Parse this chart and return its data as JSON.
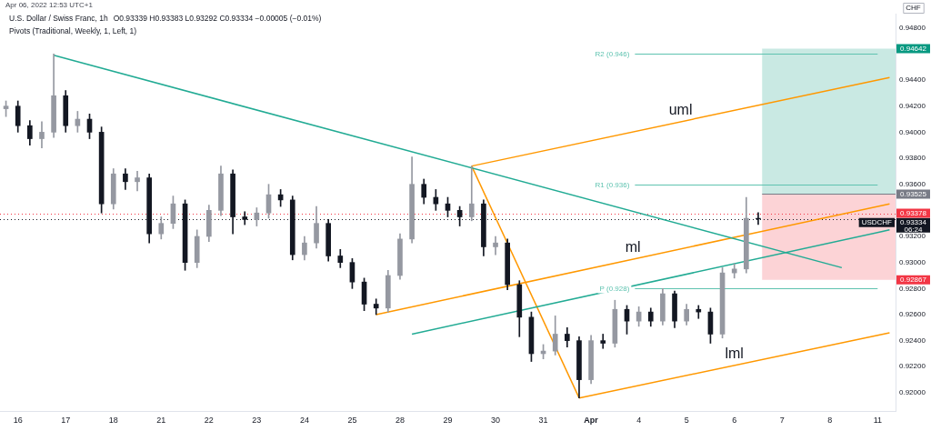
{
  "chart_data": {
    "type": "candlestick",
    "title": "U.S. Dollar / Swiss Franc, 1h",
    "subtitle": "O0.93339 H0.93383 L0.93292 C0.93334 −0.00005 (−0.01%)",
    "ylabel": "CHF",
    "annotations": [
      "Apr 06, 2022 12:53 UTC+1",
      "Pivots (Traditional, Weekly, 1, Left, 1)",
      "USDCHF",
      "06:24"
    ],
    "categories": [
      null,
      "16",
      null,
      null,
      null,
      "17",
      null,
      null,
      null,
      "18",
      null,
      null,
      null,
      "21",
      null,
      null,
      null,
      "22",
      null,
      null,
      null,
      "23",
      null,
      null,
      null,
      "24",
      null,
      null,
      null,
      "25",
      null,
      null,
      null,
      "28",
      null,
      null,
      null,
      "29",
      null,
      null,
      null,
      "30",
      null,
      null,
      null,
      "31",
      null,
      null,
      null,
      "Apr",
      null,
      null,
      null,
      "4",
      null,
      null,
      null,
      "5",
      null,
      null,
      null,
      "6",
      null,
      null,
      null,
      "7",
      null,
      null,
      null,
      "8",
      null,
      null,
      null,
      "11",
      null
    ],
    "ylim": [
      0.9186,
      0.9491
    ],
    "yticks": [
      {
        "value": 0.92,
        "label": "0.92000"
      },
      {
        "value": 0.922,
        "label": "0.92200"
      },
      {
        "value": 0.924,
        "label": "0.92400"
      },
      {
        "value": 0.926,
        "label": "0.92600"
      },
      {
        "value": 0.928,
        "label": "0.92800"
      },
      {
        "value": 0.93,
        "label": "0.93000"
      },
      {
        "value": 0.932,
        "label": "0.93200"
      },
      {
        "value": 0.936,
        "label": "0.93600"
      },
      {
        "value": 0.938,
        "label": "0.93800"
      },
      {
        "value": 0.94,
        "label": "0.94000"
      },
      {
        "value": 0.942,
        "label": "0.94200"
      },
      {
        "value": 0.944,
        "label": "0.94400"
      },
      {
        "value": 0.948,
        "label": "0.94800"
      }
    ],
    "series": [
      {
        "ohlc": [
          [
            0.9418,
            0.9424,
            0.9412,
            0.942
          ],
          [
            0.942,
            0.9424,
            0.94,
            0.9405
          ],
          [
            0.9405,
            0.9409,
            0.939,
            0.9395
          ],
          [
            0.9395,
            0.9408,
            0.9388,
            0.94
          ],
          [
            0.94,
            0.946,
            0.9396,
            0.9428
          ],
          [
            0.9428,
            0.9432,
            0.94,
            0.9405
          ],
          [
            0.9405,
            0.9416,
            0.94,
            0.941
          ],
          [
            0.941,
            0.9414,
            0.9395,
            0.94
          ],
          [
            0.94,
            0.9404,
            0.9338,
            0.9345
          ],
          [
            0.9345,
            0.9372,
            0.9341,
            0.9368
          ],
          [
            0.9368,
            0.9372,
            0.9356,
            0.9362
          ],
          [
            0.9362,
            0.937,
            0.9355,
            0.9365
          ],
          [
            0.9365,
            0.9368,
            0.9315,
            0.9322
          ],
          [
            0.9322,
            0.9335,
            0.9318,
            0.933
          ],
          [
            0.933,
            0.9351,
            0.9326,
            0.9345
          ],
          [
            0.9345,
            0.9348,
            0.9294,
            0.93
          ],
          [
            0.93,
            0.9325,
            0.9296,
            0.932
          ],
          [
            0.932,
            0.9344,
            0.9316,
            0.934
          ],
          [
            0.934,
            0.9374,
            0.9336,
            0.9368
          ],
          [
            0.9368,
            0.9371,
            0.9322,
            0.9335
          ],
          [
            0.9335,
            0.9339,
            0.9329,
            0.9333
          ],
          [
            0.9333,
            0.9342,
            0.9328,
            0.9338
          ],
          [
            0.9338,
            0.936,
            0.9334,
            0.9352
          ],
          [
            0.9352,
            0.9356,
            0.9343,
            0.9348
          ],
          [
            0.9348,
            0.9351,
            0.9302,
            0.9306
          ],
          [
            0.9306,
            0.932,
            0.9302,
            0.9315
          ],
          [
            0.9315,
            0.9343,
            0.9311,
            0.933
          ],
          [
            0.933,
            0.9333,
            0.9301,
            0.9305
          ],
          [
            0.9305,
            0.931,
            0.9296,
            0.93
          ],
          [
            0.93,
            0.9303,
            0.928,
            0.9285
          ],
          [
            0.9285,
            0.9288,
            0.9263,
            0.9268
          ],
          [
            0.9268,
            0.9272,
            0.926,
            0.9265
          ],
          [
            0.9265,
            0.9294,
            0.9262,
            0.929
          ],
          [
            0.929,
            0.9322,
            0.9287,
            0.9318
          ],
          [
            0.9318,
            0.9381,
            0.9315,
            0.936
          ],
          [
            0.936,
            0.9364,
            0.9345,
            0.935
          ],
          [
            0.935,
            0.9356,
            0.934,
            0.9345
          ],
          [
            0.9345,
            0.935,
            0.9335,
            0.934
          ],
          [
            0.934,
            0.9343,
            0.9328,
            0.9335
          ],
          [
            0.9335,
            0.9374,
            0.9332,
            0.9345
          ],
          [
            0.9345,
            0.9348,
            0.9305,
            0.9312
          ],
          [
            0.9312,
            0.932,
            0.9306,
            0.9315
          ],
          [
            0.9315,
            0.9318,
            0.9279,
            0.9283
          ],
          [
            0.9283,
            0.9286,
            0.9243,
            0.9258
          ],
          [
            0.9258,
            0.9262,
            0.9224,
            0.923
          ],
          [
            0.923,
            0.9237,
            0.9226,
            0.9232
          ],
          [
            0.9232,
            0.9259,
            0.9229,
            0.9245
          ],
          [
            0.9245,
            0.925,
            0.9235,
            0.924
          ],
          [
            0.924,
            0.9243,
            0.9196,
            0.921
          ],
          [
            0.921,
            0.9244,
            0.9207,
            0.924
          ],
          [
            0.924,
            0.9245,
            0.9234,
            0.9238
          ],
          [
            0.9238,
            0.9271,
            0.9235,
            0.9264
          ],
          [
            0.9264,
            0.9267,
            0.9245,
            0.9255
          ],
          [
            0.9255,
            0.9266,
            0.9251,
            0.9262
          ],
          [
            0.9262,
            0.9265,
            0.9251,
            0.9255
          ],
          [
            0.9255,
            0.928,
            0.9252,
            0.9276
          ],
          [
            0.9276,
            0.9278,
            0.925,
            0.9255
          ],
          [
            0.9255,
            0.9268,
            0.9252,
            0.9264
          ],
          [
            0.9264,
            0.9267,
            0.9257,
            0.9262
          ],
          [
            0.9262,
            0.9265,
            0.9238,
            0.9245
          ],
          [
            0.9245,
            0.9296,
            0.9242,
            0.9292
          ],
          [
            0.9292,
            0.9299,
            0.9288,
            0.9295
          ],
          [
            0.9295,
            0.935,
            0.9292,
            0.93339
          ],
          [
            0.93339,
            0.93383,
            0.93292,
            0.93334
          ],
          null,
          null,
          null,
          null,
          null,
          null,
          null,
          null,
          null,
          null,
          null
        ],
        "colors": [
          "#9598a1",
          "#131722",
          "#131722",
          "#9598a1",
          "#9598a1",
          "#131722",
          "#9598a1",
          "#131722",
          "#131722",
          "#9598a1",
          "#131722",
          "#9598a1",
          "#131722",
          "#9598a1",
          "#9598a1",
          "#131722",
          "#9598a1",
          "#9598a1",
          "#9598a1",
          "#131722",
          "#131722",
          "#9598a1",
          "#9598a1",
          "#131722",
          "#131722",
          "#9598a1",
          "#9598a1",
          "#131722",
          "#131722",
          "#131722",
          "#131722",
          "#131722",
          "#9598a1",
          "#9598a1",
          "#9598a1",
          "#131722",
          "#131722",
          "#131722",
          "#131722",
          "#9598a1",
          "#131722",
          "#9598a1",
          "#131722",
          "#131722",
          "#131722",
          "#9598a1",
          "#9598a1",
          "#131722",
          "#131722",
          "#9598a1",
          "#131722",
          "#9598a1",
          "#131722",
          "#9598a1",
          "#131722",
          "#9598a1",
          "#131722",
          "#9598a1",
          "#131722",
          "#131722",
          "#9598a1",
          "#9598a1",
          "#9598a1",
          "#131722",
          null,
          null,
          null,
          null,
          null,
          null,
          null,
          null,
          null,
          null,
          null
        ]
      },
      {
        "type": "line",
        "color": "#22ab94",
        "values": [
          null,
          null,
          null,
          null,
          0.9459,
          null,
          null,
          null,
          null,
          null,
          null,
          null,
          null,
          null,
          null,
          null,
          null,
          null,
          null,
          null,
          null,
          null,
          null,
          null,
          null,
          null,
          null,
          null,
          null,
          null,
          null,
          null,
          null,
          null,
          null,
          null,
          null,
          null,
          null,
          null,
          null,
          null,
          null,
          null,
          null,
          null,
          null,
          null,
          null,
          null,
          null,
          null,
          null,
          null,
          null,
          null,
          null,
          null,
          null,
          null,
          null,
          null,
          null,
          null,
          null,
          null,
          null,
          null,
          null,
          null,
          0.9296,
          null,
          null,
          null,
          null
        ]
      },
      {
        "type": "line",
        "color": "#22ab94",
        "values": [
          null,
          null,
          null,
          null,
          null,
          null,
          null,
          null,
          null,
          null,
          null,
          null,
          null,
          null,
          null,
          null,
          null,
          null,
          null,
          null,
          null,
          null,
          null,
          null,
          null,
          null,
          null,
          null,
          null,
          null,
          null,
          null,
          null,
          null,
          0.9245,
          null,
          null,
          null,
          null,
          null,
          null,
          null,
          null,
          null,
          null,
          null,
          null,
          null,
          null,
          null,
          null,
          null,
          null,
          null,
          null,
          null,
          null,
          null,
          null,
          null,
          null,
          null,
          null,
          null,
          null,
          null,
          null,
          null,
          null,
          null,
          null,
          null,
          null,
          null,
          0.9325
        ]
      },
      {
        "type": "line",
        "color": "#ff9800",
        "values": [
          null,
          null,
          null,
          null,
          null,
          null,
          null,
          null,
          null,
          null,
          null,
          null,
          null,
          null,
          null,
          null,
          null,
          null,
          null,
          null,
          null,
          null,
          null,
          null,
          null,
          null,
          null,
          null,
          null,
          null,
          null,
          null,
          null,
          null,
          null,
          null,
          null,
          null,
          null,
          0.9374,
          null,
          null,
          null,
          null,
          null,
          null,
          null,
          null,
          0.9196,
          null,
          null,
          null,
          null,
          null,
          null,
          null,
          null,
          null,
          null,
          null,
          null,
          null,
          null,
          null,
          null,
          null,
          null,
          null,
          null,
          null,
          null,
          null,
          null,
          null,
          null
        ]
      },
      {
        "type": "line",
        "name": "uml",
        "color": "#ff9800",
        "values": [
          null,
          null,
          null,
          null,
          null,
          null,
          null,
          null,
          null,
          null,
          null,
          null,
          null,
          null,
          null,
          null,
          null,
          null,
          null,
          null,
          null,
          null,
          null,
          null,
          null,
          null,
          null,
          null,
          null,
          null,
          null,
          null,
          null,
          null,
          null,
          null,
          null,
          null,
          null,
          0.9374,
          null,
          null,
          null,
          null,
          null,
          null,
          null,
          null,
          null,
          null,
          null,
          null,
          null,
          null,
          null,
          null,
          null,
          null,
          null,
          null,
          null,
          null,
          null,
          null,
          null,
          null,
          null,
          null,
          null,
          null,
          null,
          null,
          null,
          null,
          0.9442
        ]
      },
      {
        "type": "line",
        "name": "ml",
        "color": "#ff9800",
        "values": [
          null,
          null,
          null,
          null,
          null,
          null,
          null,
          null,
          null,
          null,
          null,
          null,
          null,
          null,
          null,
          null,
          null,
          null,
          null,
          null,
          null,
          null,
          null,
          null,
          null,
          null,
          null,
          null,
          null,
          null,
          null,
          0.926,
          null,
          null,
          null,
          null,
          null,
          null,
          null,
          null,
          null,
          null,
          null,
          null,
          null,
          null,
          null,
          null,
          null,
          null,
          null,
          null,
          null,
          null,
          null,
          null,
          null,
          null,
          null,
          null,
          null,
          null,
          null,
          null,
          null,
          null,
          null,
          null,
          null,
          null,
          null,
          null,
          null,
          null,
          0.9345
        ]
      },
      {
        "type": "line",
        "name": "lml",
        "color": "#ff9800",
        "values": [
          null,
          null,
          null,
          null,
          null,
          null,
          null,
          null,
          null,
          null,
          null,
          null,
          null,
          null,
          null,
          null,
          null,
          null,
          null,
          null,
          null,
          null,
          null,
          null,
          null,
          null,
          null,
          null,
          null,
          null,
          null,
          null,
          null,
          null,
          null,
          null,
          null,
          null,
          null,
          null,
          null,
          null,
          null,
          null,
          null,
          null,
          null,
          null,
          0.9196,
          null,
          null,
          null,
          null,
          null,
          null,
          null,
          null,
          null,
          null,
          null,
          null,
          null,
          null,
          null,
          null,
          null,
          null,
          null,
          null,
          null,
          null,
          null,
          null,
          null,
          0.9246
        ]
      }
    ],
    "ref_lines": [
      {
        "axis": "y",
        "value": 0.946,
        "label": "R2 (0.946)",
        "color": "#5fc3b0"
      },
      {
        "axis": "y",
        "value": 0.936,
        "label": "R1 (0.936)",
        "color": "#5fc3b0"
      },
      {
        "axis": "y",
        "value": 0.928,
        "label": "P (0.928)",
        "color": "#5fc3b0"
      },
      {
        "axis": "y",
        "value": 0.93525,
        "label": "0.93525",
        "color": "#787b86"
      },
      {
        "axis": "y",
        "value": 0.93334,
        "label": "0.93334",
        "color": "#131722",
        "line_style": "dotted"
      },
      {
        "axis": "y",
        "value": 0.93378,
        "label": "0.93378",
        "color": "#f23645",
        "line_style": "dotted"
      }
    ],
    "bands": [
      {
        "axis": "y",
        "from": 0.93525,
        "to": 0.94642,
        "label": "0.94642",
        "color": "#089981"
      },
      {
        "axis": "y",
        "from": 0.92867,
        "to": 0.93525,
        "label": "0.92867",
        "color": "#f23645"
      }
    ]
  }
}
